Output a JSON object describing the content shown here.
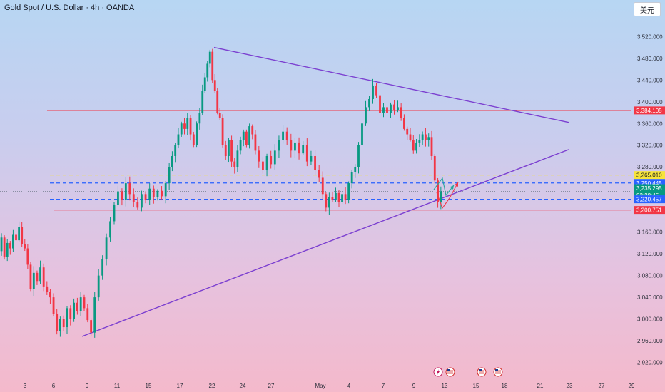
{
  "header": {
    "symbol_title": "Gold Spot / U.S. Dollar · 4h · OANDA",
    "currency_button": "美元"
  },
  "chart_data": {
    "type": "candlestick",
    "ylim": [
      2905,
      3548
    ],
    "y_ticks": [
      2920,
      2960,
      3000,
      3040,
      3080,
      3120,
      3160,
      3200,
      3240,
      3280,
      3320,
      3360,
      3400,
      3440,
      3480,
      3520
    ],
    "y_tick_labels": [
      "2,920.000",
      "2,960.000",
      "3,000.000",
      "3,040.000",
      "3,080.000",
      "3,120.000",
      "3,160.000",
      "3,200.000",
      "3,240.000",
      "3,280.000",
      "3,320.000",
      "3,360.000",
      "3,400.000",
      "3,440.000",
      "3,480.000",
      "3,520.000"
    ],
    "x_labels": [
      "3",
      "6",
      "9",
      "11",
      "15",
      "17",
      "22",
      "24",
      "27",
      "May",
      "4",
      "7",
      "9",
      "13",
      "15",
      "18",
      "21",
      "23",
      "27",
      "29"
    ],
    "price_tags": [
      {
        "label": "3,384.105",
        "value": 3384.105,
        "color": "#f23645",
        "text_color": "#ffffff"
      },
      {
        "label": "3,265.010",
        "value": 3265.01,
        "color": "#f7e43a",
        "text_color": "#131722"
      },
      {
        "label": "3,250.445",
        "value": 3250.445,
        "color": "#2962ff",
        "text_color": "#ffffff"
      },
      {
        "label": "3,235.295",
        "value": 3235.295,
        "color": "#089981",
        "text_color": "#ffffff"
      },
      {
        "label": "03:28:45",
        "value": 3225,
        "color": "#089981",
        "text_color": "#ffffff"
      },
      {
        "label": "3,220.457",
        "value": 3220.457,
        "color": "#2962ff",
        "text_color": "#ffffff"
      },
      {
        "label": "3,200.751",
        "value": 3200.751,
        "color": "#f23645",
        "text_color": "#ffffff"
      }
    ],
    "levels": [
      {
        "value": 3384.105,
        "style": "solid",
        "color": "#f23645"
      },
      {
        "value": 3265.01,
        "style": "dashed",
        "color": "#f7e43a"
      },
      {
        "value": 3250.445,
        "style": "dashed",
        "color": "#2962ff"
      },
      {
        "value": 3220.457,
        "style": "dashed",
        "color": "#2962ff"
      },
      {
        "value": 3200.751,
        "style": "solid",
        "color": "#f23645"
      }
    ],
    "trendlines": [
      {
        "from": [
          "Apr 22",
          3500
        ],
        "to": [
          "May 23",
          3362
        ],
        "color": "#7b3fd0"
      },
      {
        "from": [
          "Apr 8",
          2968
        ],
        "to": [
          "May 23",
          3312
        ],
        "color": "#7b3fd0"
      }
    ],
    "up_color": "#089981",
    "down_color": "#f23645",
    "last_price": 3235.295,
    "segments": [
      [
        3125,
        3150,
        3115,
        3140,
        3130,
        3155,
        3145,
        3170,
        3138,
        3130,
        3100,
        3055
      ],
      [
        3055,
        3085,
        3070,
        3095,
        3060,
        3050,
        3040,
        3010,
        2978
      ],
      [
        2978,
        3000,
        2985,
        3020,
        3000,
        3030,
        3015,
        3040,
        3020,
        2998,
        2975
      ],
      [
        2975,
        3040,
        3080,
        3110,
        3150,
        3180,
        3210,
        3235,
        3220,
        3250,
        3230,
        3215
      ],
      [
        3215,
        3205,
        3230,
        3220,
        3240,
        3225,
        3236,
        3226,
        3250
      ],
      [
        3250,
        3280,
        3300,
        3320,
        3340,
        3360,
        3350,
        3370,
        3340,
        3320,
        3360,
        3380
      ],
      [
        3380,
        3420,
        3445,
        3470,
        3492,
        3440,
        3420,
        3380,
        3370
      ],
      [
        3370,
        3320,
        3300,
        3330,
        3290,
        3280,
        3310,
        3330,
        3345,
        3320,
        3355,
        3340,
        3310
      ],
      [
        3310,
        3290,
        3275,
        3300,
        3285,
        3310,
        3330,
        3345,
        3330,
        3310,
        3325,
        3305,
        3320,
        3290,
        3300,
        3275,
        3260
      ],
      [
        3260,
        3230,
        3205,
        3225,
        3220,
        3232,
        3215,
        3230,
        3220,
        3250,
        3270,
        3280
      ],
      [
        3280,
        3320,
        3360,
        3390,
        3405,
        3430,
        3412,
        3380,
        3390,
        3380,
        3395,
        3385,
        3390
      ],
      [
        3390,
        3370,
        3350,
        3340,
        3330,
        3310,
        3325,
        3330,
        3340,
        3330,
        3335,
        3300,
        3255,
        3215,
        3235
      ]
    ],
    "segment_x": [
      0,
      45,
      82,
      130,
      190,
      235,
      282,
      310,
      360,
      450,
      500,
      560,
      620
    ],
    "forecast_arrows": {
      "green": [
        [
          608,
          266
        ],
        [
          620,
          250
        ],
        [
          625,
          274
        ],
        [
          636,
          260
        ]
      ],
      "red": [
        [
          612,
          270
        ],
        [
          620,
          292
        ],
        [
          630,
          278
        ],
        [
          642,
          256
        ]
      ]
    },
    "bottom_icons": [
      "lightning-icon",
      "us-flag-icon",
      "us-flag-icon",
      "us-flag-icon"
    ]
  }
}
